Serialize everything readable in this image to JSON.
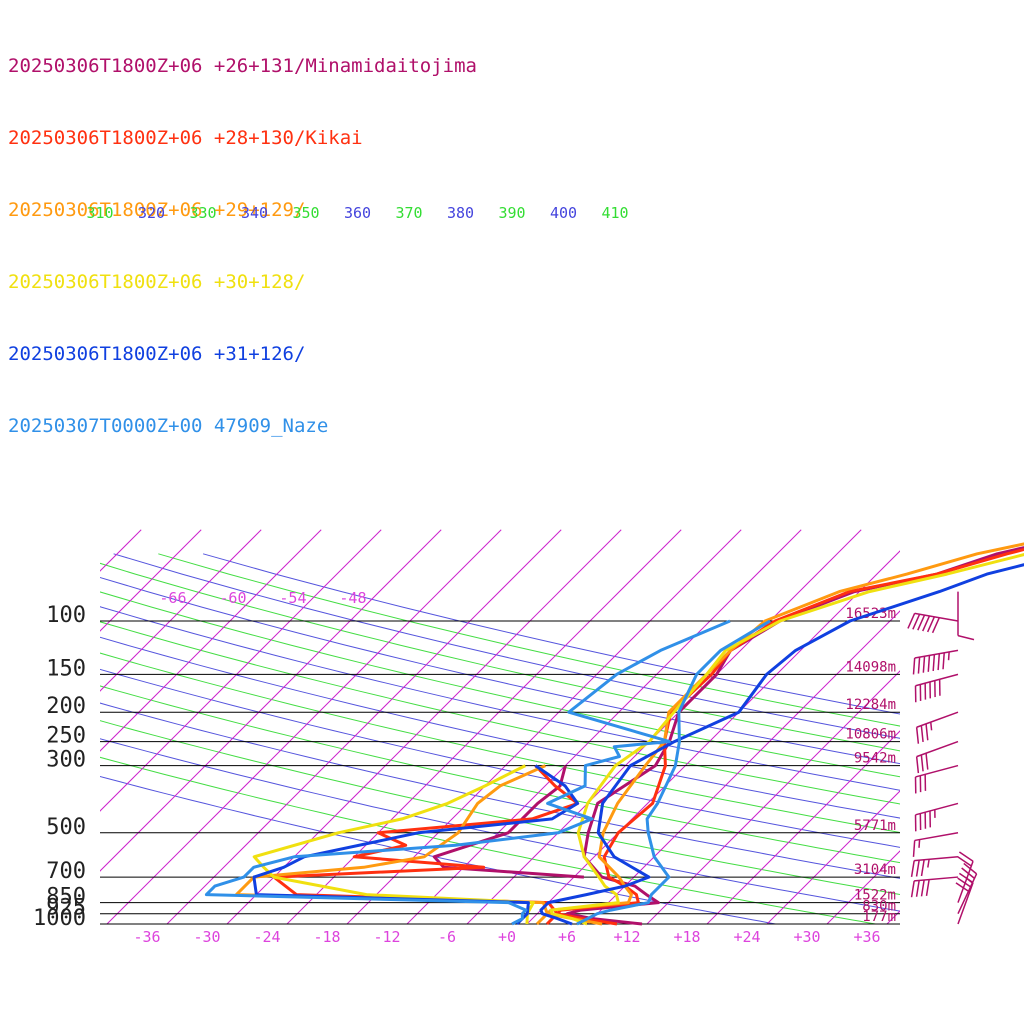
{
  "legend": [
    {
      "label": "20250306T1800Z+06 +26+131/Minamidaitojima",
      "color": "#b0106a"
    },
    {
      "label": "20250306T1800Z+06 +28+130/Kikai",
      "color": "#ff3010"
    },
    {
      "label": "20250306T1800Z+06 +29+129/",
      "color": "#ff9a10"
    },
    {
      "label": "20250306T1800Z+06 +30+128/",
      "color": "#f0e010"
    },
    {
      "label": "20250306T1800Z+06 +31+126/",
      "color": "#1040e0"
    },
    {
      "label": "20250307T0000Z+00 47909_Naze",
      "color": "#3090e8"
    }
  ],
  "chart_data": {
    "type": "line",
    "xlabel": "",
    "ylabel": "",
    "x_ticks": [
      "-36",
      "-30",
      "-24",
      "-18",
      "-12",
      "-6",
      "+0",
      "+6",
      "+12",
      "+18",
      "+24",
      "+30",
      "+36"
    ],
    "xlim": [
      -40,
      40
    ],
    "y_scale": "log",
    "ylim": [
      1000,
      100
    ],
    "pressure_levels": [
      {
        "p": 100,
        "label": "100",
        "height": "16523m"
      },
      {
        "p": 150,
        "label": "150",
        "height": "14098m"
      },
      {
        "p": 200,
        "label": "200",
        "height": "12284m"
      },
      {
        "p": 250,
        "label": "250",
        "height": "10806m"
      },
      {
        "p": 300,
        "label": "300",
        "height": "9542m"
      },
      {
        "p": 500,
        "label": "500",
        "height": "5771m"
      },
      {
        "p": 700,
        "label": "700",
        "height": "3104m"
      },
      {
        "p": 850,
        "label": "850",
        "height": "1522m"
      },
      {
        "p": 925,
        "label": "925",
        "height": "830m"
      },
      {
        "p": 1000,
        "label": "1000",
        "height": "177m"
      }
    ],
    "isotherm_labels_top": [
      "-66",
      "-60",
      "-54",
      "-48"
    ],
    "theta_labels": [
      {
        "text": "310",
        "color": "#33dd33"
      },
      {
        "text": "320",
        "color": "#4444dd"
      },
      {
        "text": "330",
        "color": "#33dd33"
      },
      {
        "text": "340",
        "color": "#4444dd"
      },
      {
        "text": "350",
        "color": "#33dd33"
      },
      {
        "text": "360",
        "color": "#4444dd"
      },
      {
        "text": "370",
        "color": "#33dd33"
      },
      {
        "text": "380",
        "color": "#4444dd"
      },
      {
        "text": "390",
        "color": "#33dd33"
      },
      {
        "text": "400",
        "color": "#4444dd"
      },
      {
        "text": "410",
        "color": "#33dd33"
      }
    ],
    "series": [
      {
        "name": "20250306T1800Z+06 +26+131/Minamidaitojima",
        "color": "#b0106a",
        "width": 3,
        "points": [
          [
            1000,
            13.5
          ],
          [
            960,
            8
          ],
          [
            925,
            5
          ],
          [
            900,
            6
          ],
          [
            850,
            13
          ],
          [
            800,
            11
          ],
          [
            750,
            9
          ],
          [
            700,
            4.8
          ],
          [
            600,
            1
          ],
          [
            500,
            -1
          ],
          [
            400,
            -3
          ],
          [
            300,
            -1
          ],
          [
            250,
            -2
          ],
          [
            200,
            -4
          ],
          [
            150,
            -4
          ],
          [
            125,
            -5
          ],
          [
            100,
            -3
          ],
          [
            90,
            -1
          ],
          [
            80,
            1.5
          ],
          [
            70,
            8
          ],
          [
            60,
            12
          ],
          [
            50,
            20
          ],
          [
            45,
            24
          ],
          [
            40,
            30
          ]
        ],
        "dew": [
          [
            700,
            3
          ],
          [
            650,
            -12
          ],
          [
            600,
            -14
          ],
          [
            500,
            -9
          ],
          [
            400,
            -9
          ],
          [
            350,
            -8.5
          ],
          [
            300,
            -10
          ]
        ]
      },
      {
        "name": "20250306T1800Z+06 +28+130/Kikai",
        "color": "#ff3010",
        "width": 3,
        "points": [
          [
            1000,
            11
          ],
          [
            960,
            7
          ],
          [
            925,
            4
          ],
          [
            900,
            4
          ],
          [
            850,
            11
          ],
          [
            800,
            10
          ],
          [
            750,
            8
          ],
          [
            700,
            5.5
          ],
          [
            600,
            3
          ],
          [
            500,
            2
          ],
          [
            400,
            2.5
          ],
          [
            300,
            0
          ],
          [
            250,
            -2.5
          ],
          [
            200,
            -4.8
          ],
          [
            150,
            -4.5
          ],
          [
            125,
            -5
          ],
          [
            100,
            -3.5
          ],
          [
            80,
            1
          ],
          [
            70,
            8
          ],
          [
            60,
            13
          ],
          [
            50,
            20
          ],
          [
            45,
            27
          ],
          [
            40,
            32
          ]
        ],
        "dew": [
          [
            1000,
            4
          ],
          [
            925,
            4
          ],
          [
            850,
            2
          ],
          [
            800,
            -24
          ],
          [
            700,
            -28
          ],
          [
            650,
            -8
          ],
          [
            600,
            -22
          ],
          [
            550,
            -18
          ],
          [
            500,
            -22
          ],
          [
            450,
            -8
          ],
          [
            400,
            -5
          ],
          [
            350,
            -9
          ],
          [
            300,
            -13
          ]
        ]
      },
      {
        "name": "20250306T1800Z+06 +29+129/",
        "color": "#ff9a10",
        "width": 3,
        "points": [
          [
            1000,
            9.5
          ],
          [
            960,
            6
          ],
          [
            925,
            3
          ],
          [
            900,
            3
          ],
          [
            850,
            10
          ],
          [
            800,
            9.5
          ],
          [
            750,
            8
          ],
          [
            700,
            6.5
          ],
          [
            600,
            2.5
          ],
          [
            500,
            0.5
          ],
          [
            400,
            -1
          ],
          [
            300,
            -2
          ],
          [
            250,
            -2.5
          ],
          [
            200,
            -5
          ],
          [
            150,
            -5
          ],
          [
            125,
            -5
          ],
          [
            100,
            -4.5
          ],
          [
            80,
            0
          ],
          [
            70,
            5
          ],
          [
            60,
            10
          ],
          [
            50,
            19
          ],
          [
            45,
            26
          ],
          [
            40,
            31
          ]
        ],
        "dew": [
          [
            1000,
            3
          ],
          [
            925,
            3
          ],
          [
            850,
            1.5
          ],
          [
            800,
            -30
          ],
          [
            700,
            -30
          ],
          [
            650,
            -20
          ],
          [
            600,
            -15
          ],
          [
            500,
            -14
          ],
          [
            400,
            -15
          ],
          [
            350,
            -14.5
          ],
          [
            300,
            -12
          ]
        ]
      },
      {
        "name": "20250306T1800Z+06 +30+128/",
        "color": "#f0e010",
        "width": 3,
        "points": [
          [
            1000,
            8
          ],
          [
            960,
            6
          ],
          [
            925,
            3.5
          ],
          [
            900,
            3
          ],
          [
            850,
            9
          ],
          [
            800,
            8
          ],
          [
            750,
            6
          ],
          [
            700,
            4.5
          ],
          [
            600,
            1
          ],
          [
            500,
            -2
          ],
          [
            400,
            -4
          ],
          [
            300,
            -5
          ],
          [
            250,
            -4
          ],
          [
            200,
            -4.5
          ],
          [
            150,
            -5
          ],
          [
            125,
            -5.5
          ],
          [
            100,
            -3
          ],
          [
            80,
            3
          ],
          [
            70,
            9
          ],
          [
            60,
            15
          ],
          [
            50,
            22
          ],
          [
            40,
            33
          ]
        ],
        "dew": [
          [
            1000,
            2
          ],
          [
            925,
            1
          ],
          [
            850,
            0.5
          ],
          [
            800,
            -17
          ],
          [
            700,
            -28
          ],
          [
            650,
            -30
          ],
          [
            600,
            -32
          ],
          [
            500,
            -26
          ],
          [
            450,
            -21
          ],
          [
            400,
            -18
          ],
          [
            350,
            -16
          ],
          [
            300,
            -14
          ]
        ]
      },
      {
        "name": "20250306T1800Z+06 +31+126/",
        "color": "#1040e0",
        "width": 3,
        "points": [
          [
            1000,
            6.5
          ],
          [
            960,
            4.5
          ],
          [
            925,
            2.5
          ],
          [
            900,
            2
          ],
          [
            850,
            2
          ],
          [
            800,
            5
          ],
          [
            750,
            8
          ],
          [
            700,
            9.5
          ],
          [
            600,
            4
          ],
          [
            500,
            0
          ],
          [
            400,
            -2.5
          ],
          [
            300,
            -3.5
          ],
          [
            250,
            -1.5
          ],
          [
            200,
            2
          ],
          [
            150,
            1
          ],
          [
            125,
            1.5
          ],
          [
            100,
            4
          ],
          [
            80,
            10
          ],
          [
            70,
            13
          ],
          [
            60,
            19
          ],
          [
            50,
            24
          ],
          [
            40,
            32
          ]
        ],
        "dew": [
          [
            1000,
            1
          ],
          [
            925,
            1
          ],
          [
            850,
            0
          ],
          [
            800,
            -28
          ],
          [
            700,
            -30
          ],
          [
            650,
            -28
          ],
          [
            600,
            -27
          ],
          [
            500,
            -18
          ],
          [
            450,
            -6
          ],
          [
            400,
            -5
          ],
          [
            350,
            -8
          ],
          [
            300,
            -13
          ]
        ]
      },
      {
        "name": "20250307T0000Z+00 47909_Naze",
        "color": "#3090e8",
        "width": 3,
        "points": [
          [
            1000,
            7
          ],
          [
            925,
            8
          ],
          [
            900,
            9
          ],
          [
            850,
            12
          ],
          [
            800,
            11.5
          ],
          [
            700,
            11.5
          ],
          [
            600,
            8
          ],
          [
            500,
            5
          ],
          [
            450,
            3.5
          ],
          [
            400,
            3
          ],
          [
            300,
            1
          ],
          [
            250,
            -1
          ],
          [
            200,
            -4
          ],
          [
            150,
            -6
          ],
          [
            125,
            -6
          ],
          [
            100,
            -4
          ]
        ],
        "dew": [
          [
            1000,
            0.5
          ],
          [
            960,
            1
          ],
          [
            925,
            0.5
          ],
          [
            900,
            0.5
          ],
          [
            850,
            -2
          ],
          [
            800,
            -33
          ],
          [
            750,
            -33
          ],
          [
            700,
            -31
          ],
          [
            650,
            -31
          ],
          [
            600,
            -28
          ],
          [
            550,
            -13
          ],
          [
            500,
            -4
          ],
          [
            450,
            -2
          ],
          [
            400,
            -8
          ],
          [
            350,
            -6
          ],
          [
            300,
            -8
          ],
          [
            280,
            -5.5
          ],
          [
            260,
            -7
          ],
          [
            250,
            -2
          ],
          [
            200,
            -15
          ],
          [
            150,
            -14
          ],
          [
            125,
            -12
          ],
          [
            100,
            -8
          ]
        ]
      }
    ],
    "wind_barbs": [
      {
        "p": 80,
        "dir": 180,
        "speed": 10
      },
      {
        "p": 100,
        "dir": 280,
        "speed": 60
      },
      {
        "p": 125,
        "dir": 260,
        "speed": 75
      },
      {
        "p": 150,
        "dir": 255,
        "speed": 60
      },
      {
        "p": 200,
        "dir": 250,
        "speed": 35
      },
      {
        "p": 250,
        "dir": 250,
        "speed": 30
      },
      {
        "p": 300,
        "dir": 255,
        "speed": 30
      },
      {
        "p": 400,
        "dir": 255,
        "speed": 45
      },
      {
        "p": 500,
        "dir": 260,
        "speed": 15
      },
      {
        "p": 600,
        "dir": 265,
        "speed": 35
      },
      {
        "p": 700,
        "dir": 265,
        "speed": 40
      },
      {
        "p": 850,
        "dir": 20,
        "speed": 20
      },
      {
        "p": 925,
        "dir": 25,
        "speed": 25
      },
      {
        "p": 1000,
        "dir": 20,
        "speed": 30
      }
    ]
  }
}
